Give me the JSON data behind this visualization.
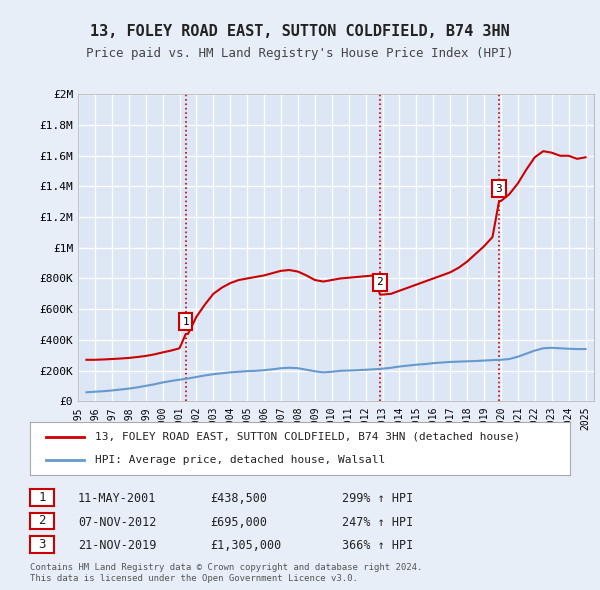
{
  "title": "13, FOLEY ROAD EAST, SUTTON COLDFIELD, B74 3HN",
  "subtitle": "Price paid vs. HM Land Registry's House Price Index (HPI)",
  "bg_color": "#e8eef8",
  "plot_bg": "#dce6f5",
  "grid_color": "#ffffff",
  "ylim": [
    0,
    2000000
  ],
  "yticks": [
    0,
    200000,
    400000,
    600000,
    800000,
    1000000,
    1200000,
    1400000,
    1600000,
    1800000,
    2000000
  ],
  "ytick_labels": [
    "£0",
    "£200K",
    "£400K",
    "£600K",
    "£800K",
    "£1M",
    "£1.2M",
    "£1.4M",
    "£1.6M",
    "£1.8M",
    "£2M"
  ],
  "sale_dates": [
    "2001-05-11",
    "2012-11-07",
    "2019-11-21"
  ],
  "sale_prices": [
    438500,
    695000,
    1305000
  ],
  "sale_labels": [
    "1",
    "2",
    "3"
  ],
  "vline_color": "#cc0000",
  "vline_style": ":",
  "house_line_color": "#cc0000",
  "hpi_line_color": "#6699cc",
  "house_x": [
    1995.5,
    1996.0,
    1996.5,
    1997.0,
    1997.5,
    1998.0,
    1998.5,
    1999.0,
    1999.5,
    2000.0,
    2000.5,
    2001.0,
    2001.37,
    2001.5,
    2002.0,
    2002.5,
    2003.0,
    2003.5,
    2004.0,
    2004.5,
    2005.0,
    2005.5,
    2006.0,
    2006.5,
    2007.0,
    2007.5,
    2008.0,
    2008.5,
    2009.0,
    2009.5,
    2010.0,
    2010.5,
    2011.0,
    2011.5,
    2012.0,
    2012.5,
    2012.85,
    2013.0,
    2013.5,
    2014.0,
    2014.5,
    2015.0,
    2015.5,
    2016.0,
    2016.5,
    2017.0,
    2017.5,
    2018.0,
    2018.5,
    2019.0,
    2019.5,
    2019.89,
    2020.0,
    2020.5,
    2021.0,
    2021.5,
    2022.0,
    2022.5,
    2023.0,
    2023.5,
    2024.0,
    2024.5,
    2025.0
  ],
  "house_y": [
    270000,
    270000,
    272000,
    275000,
    278000,
    282000,
    288000,
    295000,
    305000,
    318000,
    330000,
    345000,
    438500,
    438500,
    550000,
    630000,
    700000,
    740000,
    770000,
    790000,
    800000,
    810000,
    820000,
    835000,
    850000,
    855000,
    845000,
    820000,
    790000,
    780000,
    790000,
    800000,
    805000,
    810000,
    815000,
    820000,
    695000,
    695000,
    700000,
    720000,
    740000,
    760000,
    780000,
    800000,
    820000,
    840000,
    870000,
    910000,
    960000,
    1010000,
    1070000,
    1305000,
    1305000,
    1350000,
    1420000,
    1510000,
    1590000,
    1630000,
    1620000,
    1600000,
    1600000,
    1580000,
    1590000
  ],
  "hpi_x": [
    1995.5,
    1996.0,
    1996.5,
    1997.0,
    1997.5,
    1998.0,
    1998.5,
    1999.0,
    1999.5,
    2000.0,
    2000.5,
    2001.0,
    2001.5,
    2002.0,
    2002.5,
    2003.0,
    2003.5,
    2004.0,
    2004.5,
    2005.0,
    2005.5,
    2006.0,
    2006.5,
    2007.0,
    2007.5,
    2008.0,
    2008.5,
    2009.0,
    2009.5,
    2010.0,
    2010.5,
    2011.0,
    2011.5,
    2012.0,
    2012.5,
    2013.0,
    2013.5,
    2014.0,
    2014.5,
    2015.0,
    2015.5,
    2016.0,
    2016.5,
    2017.0,
    2017.5,
    2018.0,
    2018.5,
    2019.0,
    2019.5,
    2020.0,
    2020.5,
    2021.0,
    2021.5,
    2022.0,
    2022.5,
    2023.0,
    2023.5,
    2024.0,
    2024.5,
    2025.0
  ],
  "hpi_y": [
    58000,
    62000,
    65000,
    70000,
    76000,
    82000,
    90000,
    100000,
    110000,
    122000,
    132000,
    140000,
    148000,
    158000,
    168000,
    176000,
    182000,
    188000,
    192000,
    196000,
    198000,
    202000,
    208000,
    215000,
    218000,
    215000,
    205000,
    195000,
    188000,
    192000,
    198000,
    200000,
    202000,
    205000,
    208000,
    212000,
    218000,
    226000,
    232000,
    238000,
    242000,
    248000,
    252000,
    256000,
    258000,
    260000,
    262000,
    265000,
    268000,
    270000,
    275000,
    290000,
    310000,
    330000,
    345000,
    348000,
    345000,
    342000,
    340000,
    340000
  ],
  "xlim": [
    1995.0,
    2025.5
  ],
  "xtick_years": [
    1995,
    1996,
    1997,
    1998,
    1999,
    2000,
    2001,
    2002,
    2003,
    2004,
    2005,
    2006,
    2007,
    2008,
    2009,
    2010,
    2011,
    2012,
    2013,
    2014,
    2015,
    2016,
    2017,
    2018,
    2019,
    2020,
    2021,
    2022,
    2023,
    2024,
    2025
  ],
  "legend_label_house": "13, FOLEY ROAD EAST, SUTTON COLDFIELD, B74 3HN (detached house)",
  "legend_label_hpi": "HPI: Average price, detached house, Walsall",
  "transactions": [
    {
      "label": "1",
      "date": "11-MAY-2001",
      "price": "£438,500",
      "hpi": "299% ↑ HPI",
      "x": 2001.37
    },
    {
      "label": "2",
      "date": "07-NOV-2012",
      "price": "£695,000",
      "hpi": "247% ↑ HPI",
      "x": 2012.85
    },
    {
      "label": "3",
      "date": "21-NOV-2019",
      "price": "£1,305,000",
      "hpi": "366% ↑ HPI",
      "x": 2019.89
    }
  ],
  "footer": "Contains HM Land Registry data © Crown copyright and database right 2024.\nThis data is licensed under the Open Government Licence v3.0.",
  "font_family": "monospace"
}
